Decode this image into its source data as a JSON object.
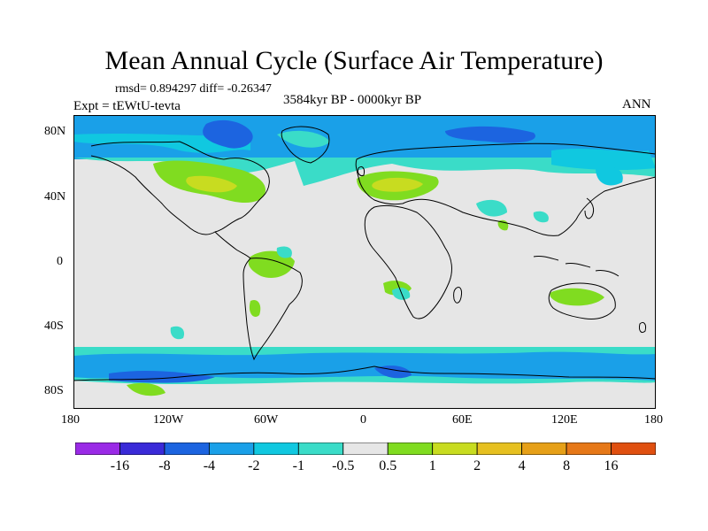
{
  "title": "Mean Annual Cycle (Surface Air Temperature)",
  "stats": "rmsd= 0.894297 diff= -0.26347",
  "experiment": "Expt = tEWtU-tevta",
  "period": "3584kyr BP - 0000kyr BP",
  "season": "ANN",
  "lat_labels": [
    "80N",
    "40N",
    "0",
    "40S",
    "80S"
  ],
  "lon_labels": [
    "180",
    "120W",
    "60W",
    "0",
    "60E",
    "120E",
    "180"
  ],
  "colorbar": {
    "colors": [
      "#9a2ae6",
      "#3a2ad8",
      "#1c64e0",
      "#1aa0e8",
      "#10c8e0",
      "#3adcc8",
      "#e6e6e6",
      "#80dc20",
      "#c8dc20",
      "#e6c020",
      "#e6a018",
      "#e67818",
      "#e05010"
    ],
    "labels": [
      "-16",
      "-8",
      "-4",
      "-2",
      "-1",
      "-0.5",
      "0.5",
      "1",
      "2",
      "4",
      "8",
      "16"
    ]
  }
}
